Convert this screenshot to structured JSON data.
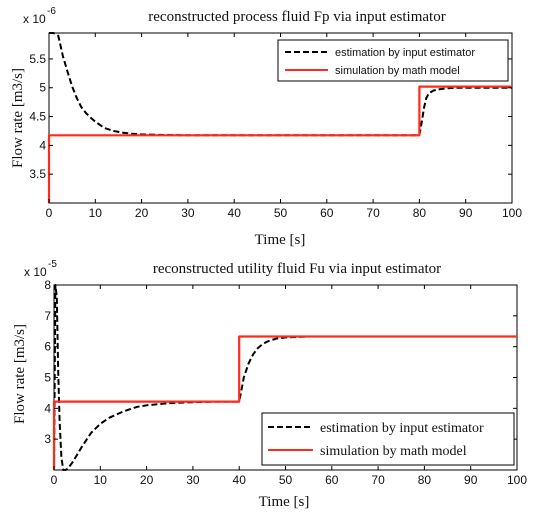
{
  "chart_data": [
    {
      "type": "line",
      "title": "reconstructed process fluid Fp via input estimator",
      "xlabel": "Time [s]",
      "ylabel": "Flow rate [m3/s]",
      "multiplier": "x 10",
      "exponent": "-6",
      "xlim": [
        0,
        100
      ],
      "ylim": [
        3.0,
        5.95
      ],
      "xticks": [
        0,
        10,
        20,
        30,
        40,
        50,
        60,
        70,
        80,
        90,
        100
      ],
      "yticks": [
        3.5,
        4,
        4.5,
        5,
        5.5
      ],
      "ytick_labels": [
        "3.5",
        "4",
        "4.5",
        "5",
        "5.5"
      ],
      "grid": false,
      "legend_position": "top-right",
      "series": [
        {
          "name": "estimation by input estimator",
          "color": "#000000",
          "style": "dashed",
          "x": [
            0,
            0.5,
            1,
            2,
            3,
            4,
            5,
            6,
            7,
            8,
            9,
            10,
            12,
            14,
            16,
            18,
            20,
            25,
            30,
            40,
            50,
            60,
            70,
            79.9,
            80,
            80.5,
            81,
            81.5,
            82,
            83,
            84,
            85,
            86,
            88,
            90,
            95,
            100
          ],
          "y": [
            5.95,
            5.95,
            5.95,
            5.9,
            5.55,
            5.28,
            5.02,
            4.82,
            4.66,
            4.56,
            4.48,
            4.41,
            4.3,
            4.25,
            4.22,
            4.2,
            4.19,
            4.18,
            4.175,
            4.175,
            4.175,
            4.175,
            4.175,
            4.175,
            4.18,
            4.4,
            4.65,
            4.82,
            4.9,
            4.95,
            4.97,
            4.98,
            4.99,
            5.0,
            5.0,
            5.0,
            5.0
          ]
        },
        {
          "name": "simulation by math model",
          "color": "#ff2a1a",
          "style": "solid",
          "x": [
            0,
            0,
            80,
            80,
            100
          ],
          "y": [
            3.0,
            4.175,
            4.175,
            5.02,
            5.02
          ]
        }
      ]
    },
    {
      "type": "line",
      "title": "reconstructed utility fluid Fu via input estimator",
      "xlabel": "Time [s]",
      "ylabel": "Flow rate [m3/s]",
      "multiplier": "x 10",
      "exponent": "-5",
      "xlim": [
        0,
        100
      ],
      "ylim": [
        2.0,
        8.0
      ],
      "xticks": [
        0,
        10,
        20,
        30,
        40,
        50,
        60,
        70,
        80,
        90,
        100
      ],
      "yticks": [
        3,
        4,
        5,
        6,
        7,
        8
      ],
      "ytick_labels": [
        "3",
        "4",
        "5",
        "6",
        "7",
        "8"
      ],
      "grid": false,
      "legend_position": "bottom-right",
      "series": [
        {
          "name": "estimation by input estimator",
          "color": "#000000",
          "style": "dashed",
          "x": [
            0,
            0.3,
            0.6,
            0.9,
            1.2,
            1.6,
            2,
            2.5,
            3,
            4,
            5,
            6,
            8,
            10,
            12,
            15,
            18,
            20,
            25,
            30,
            35,
            39.9,
            40,
            40.5,
            41,
            42,
            43,
            44,
            45,
            46,
            48,
            50,
            55,
            60,
            70,
            80,
            90,
            100
          ],
          "y": [
            2.0,
            8.0,
            7.6,
            5.2,
            3.6,
            2.4,
            2.0,
            2.0,
            2.05,
            2.25,
            2.5,
            2.75,
            3.2,
            3.5,
            3.7,
            3.9,
            4.05,
            4.1,
            4.17,
            4.2,
            4.22,
            4.22,
            4.23,
            4.6,
            5.0,
            5.45,
            5.75,
            5.95,
            6.08,
            6.16,
            6.26,
            6.3,
            6.33,
            6.33,
            6.33,
            6.33,
            6.33,
            6.33
          ]
        },
        {
          "name": "simulation by math model",
          "color": "#ff2a1a",
          "style": "solid",
          "x": [
            0,
            0,
            40,
            40,
            100
          ],
          "y": [
            2.0,
            4.22,
            4.22,
            6.33,
            6.33
          ]
        }
      ]
    }
  ]
}
